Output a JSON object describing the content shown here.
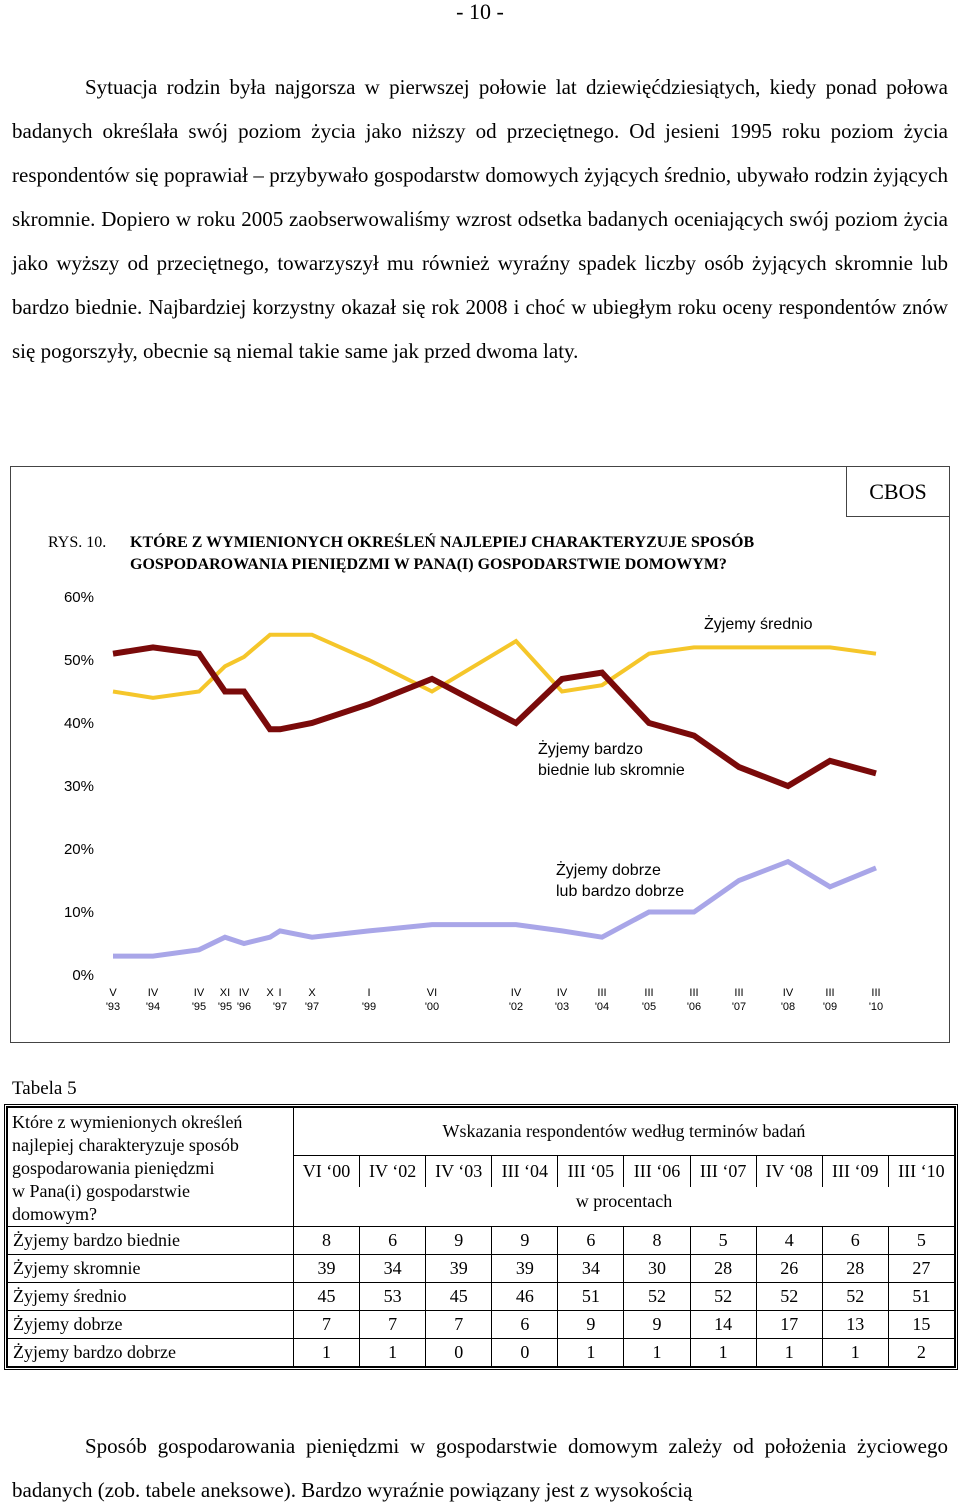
{
  "page_number": "- 10 -",
  "paragraph1": "Sytuacja rodzin była najgorsza w pierwszej połowie lat dziewięćdziesiątych, kiedy ponad połowa badanych określała swój poziom życia jako niższy od przeciętnego. Od jesieni 1995 roku poziom życia respondentów się poprawiał – przybywało gospodarstw domowych żyjących średnio, ubywało rodzin żyjących skromnie. Dopiero w roku 2005 zaobserwowaliśmy wzrost odsetka badanych oceniających swój poziom życia jako wyższy od przeciętnego, towarzyszył mu również wyraźny spadek liczby osób żyjących skromnie lub bardzo biednie. Najbardziej korzystny okazał się rok 2008 i choć w ubiegłym roku oceny respondentów znów się pogorszyły, obecnie są niemal takie same jak przed dwoma laty.",
  "cbos_label": "CBOS",
  "figure_number": "RYS. 10.",
  "figure_title_line1": "KTÓRE Z WYMIENIONYCH OKREŚLEŃ NAJLEPIEJ CHARAKTERYZUJE SPOSÓB",
  "figure_title_line2": "GOSPODAROWANIA PIENIĘDZMI W PANA(I) GOSPODARSTWIE DOMOWYM?",
  "chart_data": {
    "type": "line",
    "y_ticks": [
      "0%",
      "10%",
      "20%",
      "30%",
      "40%",
      "50%",
      "60%"
    ],
    "ylim": [
      0,
      60
    ],
    "grid": false,
    "x_months": [
      "V",
      "IV",
      "IV",
      "XI",
      "IV",
      "X",
      "I",
      "X",
      "I",
      "VI",
      "IV",
      "IV",
      "III",
      "III",
      "III",
      "III",
      "IV",
      "III",
      "III"
    ],
    "x_years": [
      "'93",
      "'94",
      "'95",
      "'95",
      "'96",
      "",
      "'97",
      "'97",
      "'99",
      "'00",
      "'02",
      "'03",
      "'04",
      "'05",
      "'06",
      "'07",
      "'08",
      "'09",
      "'10"
    ],
    "x_positions": [
      113,
      153,
      199,
      225,
      244,
      270,
      280,
      312,
      369,
      432,
      516,
      562,
      602,
      649,
      694,
      739,
      788,
      830,
      876
    ],
    "series": [
      {
        "name": "Żyjemy średnio",
        "label_lines": [
          "Żyjemy średnio"
        ],
        "color": "#f5c62a",
        "x": [
          113,
          153,
          199,
          225,
          244,
          270,
          280,
          312,
          369,
          432,
          516,
          562,
          602,
          649,
          694,
          739,
          788,
          830,
          876
        ],
        "values": [
          45,
          44,
          45,
          49,
          50.5,
          54,
          54,
          54,
          50,
          45,
          53,
          45,
          46,
          51,
          52,
          52,
          52,
          52,
          51
        ]
      },
      {
        "name": "Żyjemy bardzo biednie lub skromnie",
        "label_lines": [
          "Żyjemy bardzo",
          "biednie lub skromnie"
        ],
        "color": "#7a0a0a",
        "x": [
          113,
          153,
          199,
          225,
          244,
          270,
          280,
          312,
          369,
          432,
          516,
          562,
          602,
          649,
          694,
          739,
          788,
          830,
          876
        ],
        "values": [
          51,
          52,
          51,
          45,
          45,
          39,
          39,
          40,
          43,
          47,
          40,
          47,
          48,
          40,
          38,
          33,
          30,
          34,
          32
        ]
      },
      {
        "name": "Żyjemy dobrze lub bardzo dobrze",
        "label_lines": [
          "Żyjemy dobrze",
          "lub bardzo dobrze"
        ],
        "color": "#a9a6e8",
        "x": [
          113,
          153,
          199,
          225,
          244,
          270,
          280,
          312,
          369,
          432,
          516,
          562,
          602,
          649,
          694,
          739,
          788,
          830,
          876
        ],
        "values": [
          3,
          3,
          4,
          6,
          5,
          6,
          7,
          6,
          7,
          8,
          8,
          7,
          6,
          10,
          10,
          15,
          18,
          14,
          17
        ]
      }
    ]
  },
  "table": {
    "caption": "Tabela 5",
    "question_lines": [
      "Które z wymienionych określeń",
      "najlepiej charakteryzuje sposób",
      "gospodarowania pieniędzmi",
      "w Pana(i) gospodarstwie",
      "domowym?"
    ],
    "header_main": "Wskazania respondentów według terminów badań",
    "terms": [
      "VI ‘00",
      "IV ‘02",
      "IV ‘03",
      "III ‘04",
      "III ‘05",
      "III ‘06",
      "III ‘07",
      "IV ‘08",
      "III ‘09",
      "III ‘10"
    ],
    "unit_label": "w procentach",
    "rows": [
      {
        "label": "Żyjemy bardzo biednie",
        "values": [
          "8",
          "6",
          "9",
          "9",
          "6",
          "8",
          "5",
          "4",
          "6",
          "5"
        ]
      },
      {
        "label": "Żyjemy skromnie",
        "values": [
          "39",
          "34",
          "39",
          "39",
          "34",
          "30",
          "28",
          "26",
          "28",
          "27"
        ]
      },
      {
        "label": "Żyjemy średnio",
        "values": [
          "45",
          "53",
          "45",
          "46",
          "51",
          "52",
          "52",
          "52",
          "52",
          "51"
        ]
      },
      {
        "label": "Żyjemy dobrze",
        "values": [
          "7",
          "7",
          "7",
          "6",
          "9",
          "9",
          "14",
          "17",
          "13",
          "15"
        ]
      },
      {
        "label": "Żyjemy bardzo dobrze",
        "values": [
          "1",
          "1",
          "0",
          "0",
          "1",
          "1",
          "1",
          "1",
          "1",
          "2"
        ]
      }
    ]
  },
  "paragraph2": "Sposób gospodarowania pieniędzmi w gospodarstwie domowym zależy od położenia życiowego badanych (zob. tabele aneksowe). Bardzo wyraźnie powiązany jest z wysokością"
}
